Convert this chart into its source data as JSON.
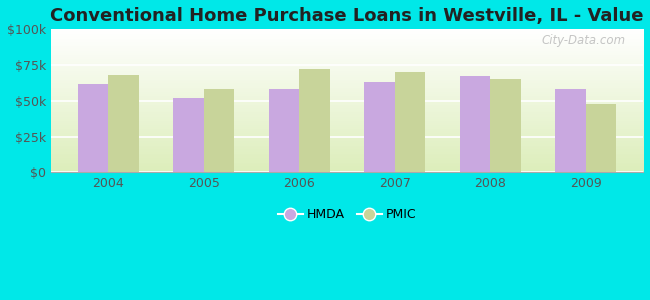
{
  "title": "Conventional Home Purchase Loans in Westville, IL - Value",
  "years": [
    2004,
    2005,
    2006,
    2007,
    2008,
    2009
  ],
  "hmda_values": [
    62000,
    52000,
    58000,
    63000,
    67000,
    58000
  ],
  "pmic_values": [
    68000,
    58000,
    72000,
    70000,
    65000,
    48000
  ],
  "hmda_color": "#c9a8e0",
  "pmic_color": "#c8d49a",
  "background_color": "#00e8e8",
  "ylim": [
    0,
    100000
  ],
  "yticks": [
    0,
    25000,
    50000,
    75000,
    100000
  ],
  "ytick_labels": [
    "$0",
    "$25k",
    "$50k",
    "$75k",
    "$100k"
  ],
  "title_fontsize": 13,
  "bar_width": 0.32,
  "watermark": "City-Data.com"
}
